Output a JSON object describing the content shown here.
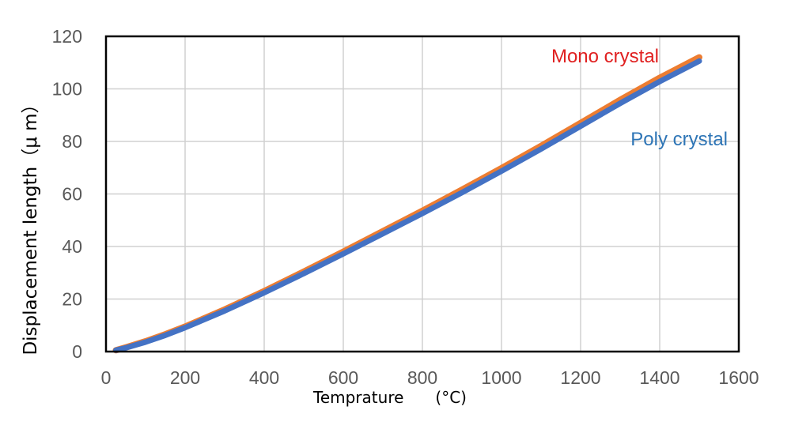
{
  "chart_data": {
    "type": "line",
    "xlabel": "Temprature　　(°C)",
    "ylabel": "Displacement length（μ m）",
    "xlim": [
      0,
      1600
    ],
    "ylim": [
      0,
      120
    ],
    "x_ticks": [
      "0",
      "200",
      "400",
      "600",
      "800",
      "1000",
      "1200",
      "1400",
      "1600"
    ],
    "y_ticks": [
      "0",
      "20",
      "40",
      "60",
      "80",
      "100",
      "120"
    ],
    "grid": true,
    "legend": "none",
    "series": [
      {
        "name": "Mono crystal",
        "color": "#ED7D31",
        "label_color": "#E02020",
        "x": [
          25,
          50,
          100,
          150,
          200,
          300,
          400,
          500,
          600,
          700,
          800,
          900,
          1000,
          1100,
          1200,
          1300,
          1400,
          1500
        ],
        "y": [
          0.5,
          1.6,
          3.9,
          6.6,
          9.5,
          16.0,
          23.0,
          30.4,
          38.0,
          45.8,
          53.6,
          61.6,
          69.8,
          78.3,
          87.0,
          95.8,
          104.2,
          112.0
        ]
      },
      {
        "name": "Poly crystal",
        "color": "#4472C4",
        "label_color": "#2E75B6",
        "x": [
          25,
          50,
          100,
          150,
          200,
          300,
          400,
          500,
          600,
          700,
          800,
          900,
          1000,
          1100,
          1200,
          1300,
          1400,
          1500
        ],
        "y": [
          0.5,
          1.4,
          3.6,
          6.2,
          9.1,
          15.5,
          22.4,
          29.7,
          37.2,
          44.9,
          52.6,
          60.5,
          68.7,
          77.1,
          85.8,
          94.5,
          102.8,
          110.6
        ]
      }
    ]
  }
}
